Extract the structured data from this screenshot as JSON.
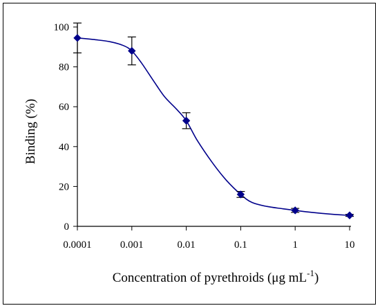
{
  "chart_data": {
    "type": "scatter",
    "xscale": "log",
    "xlabel_main": "Concentration of pyrethroids (μg mL",
    "xlabel_sup": "-1",
    "xlabel_end": ")",
    "ylabel": "Binding (%)",
    "xlim": [
      0.0001,
      10
    ],
    "ylim": [
      0,
      100
    ],
    "xticks": [
      {
        "value": 0.0001,
        "label": "0.0001"
      },
      {
        "value": 0.001,
        "label": "0.001"
      },
      {
        "value": 0.01,
        "label": "0.01"
      },
      {
        "value": 0.1,
        "label": "0.1"
      },
      {
        "value": 1,
        "label": "1"
      },
      {
        "value": 10,
        "label": "10"
      }
    ],
    "yticks": [
      {
        "value": 0,
        "label": "0"
      },
      {
        "value": 20,
        "label": "20"
      },
      {
        "value": 40,
        "label": "40"
      },
      {
        "value": 60,
        "label": "60"
      },
      {
        "value": 80,
        "label": "80"
      },
      {
        "value": 100,
        "label": "100"
      }
    ],
    "grid": false,
    "series": [
      {
        "color": "#00008b",
        "marker": "diamond",
        "points": [
          {
            "x": 0.0001,
            "y": 94.5,
            "err": 7.5
          },
          {
            "x": 0.001,
            "y": 88,
            "err": 7
          },
          {
            "x": 0.01,
            "y": 53,
            "err": 4
          },
          {
            "x": 0.1,
            "y": 16,
            "err": 1.5
          },
          {
            "x": 1,
            "y": 8,
            "err": 1
          },
          {
            "x": 10,
            "y": 5.5,
            "err": 0.5
          }
        ],
        "fit_curve": [
          {
            "x": 0.0001,
            "y": 94.5
          },
          {
            "x": 0.0002,
            "y": 93.7
          },
          {
            "x": 0.0004,
            "y": 92.6
          },
          {
            "x": 0.0007,
            "y": 90.7
          },
          {
            "x": 0.001,
            "y": 88
          },
          {
            "x": 0.0015,
            "y": 82
          },
          {
            "x": 0.0025,
            "y": 73
          },
          {
            "x": 0.004,
            "y": 65
          },
          {
            "x": 0.0065,
            "y": 59
          },
          {
            "x": 0.01,
            "y": 53
          },
          {
            "x": 0.016,
            "y": 43
          },
          {
            "x": 0.03,
            "y": 32
          },
          {
            "x": 0.055,
            "y": 23
          },
          {
            "x": 0.1,
            "y": 16
          },
          {
            "x": 0.16,
            "y": 12
          },
          {
            "x": 0.3,
            "y": 10
          },
          {
            "x": 0.6,
            "y": 8.8
          },
          {
            "x": 1,
            "y": 8
          },
          {
            "x": 2,
            "y": 7
          },
          {
            "x": 5,
            "y": 6
          },
          {
            "x": 10,
            "y": 5.5
          }
        ]
      }
    ]
  }
}
